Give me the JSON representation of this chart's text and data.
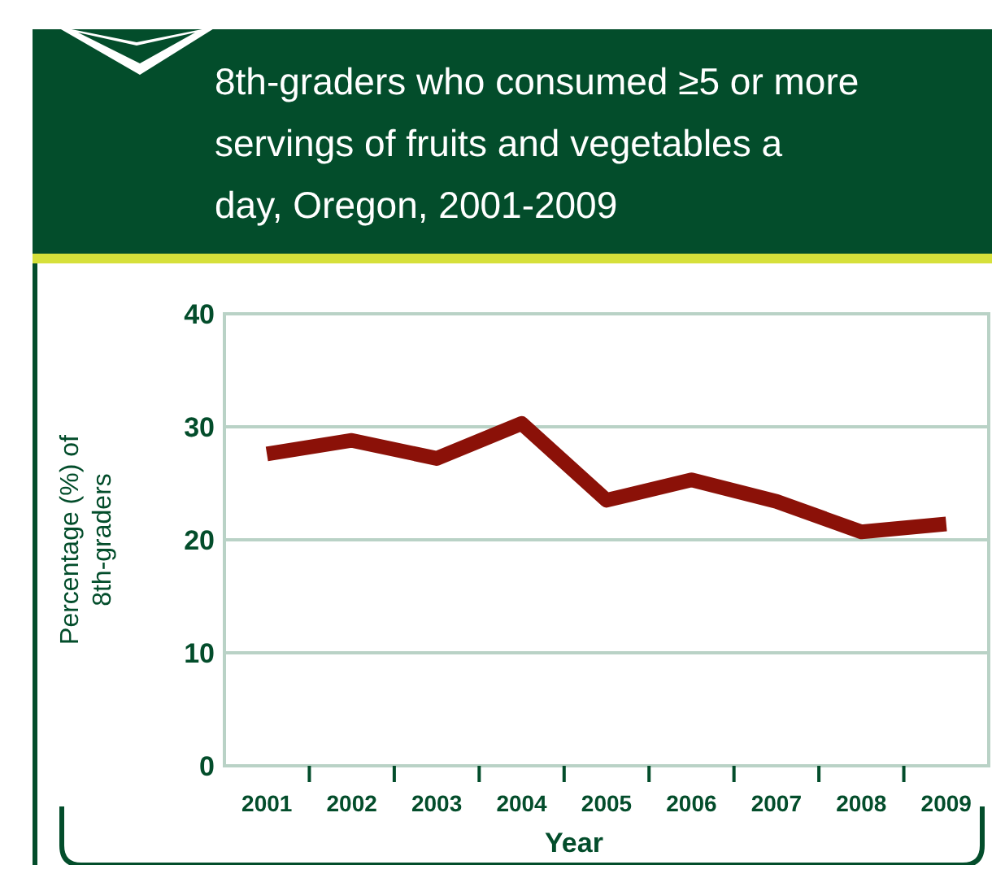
{
  "chart_data": {
    "type": "line",
    "title": "8th-graders who consumed ≥5 or more servings of fruits and vegetables a day, Oregon, 2001-2009",
    "xlabel": "Year",
    "ylabel": "Percentage (%) of 8th-graders",
    "categories": [
      "2001",
      "2002",
      "2003",
      "2004",
      "2005",
      "2006",
      "2007",
      "2008",
      "2009"
    ],
    "series": [
      {
        "color": "#8b1108",
        "values": [
          27.6,
          28.8,
          27.2,
          30.3,
          23.5,
          25.3,
          23.4,
          20.7,
          21.4
        ]
      }
    ],
    "ylim": [
      0,
      40
    ],
    "yticks": [
      0,
      10,
      20,
      30,
      40
    ],
    "grid": "y",
    "marker": "none",
    "line_style": "solid"
  }
}
